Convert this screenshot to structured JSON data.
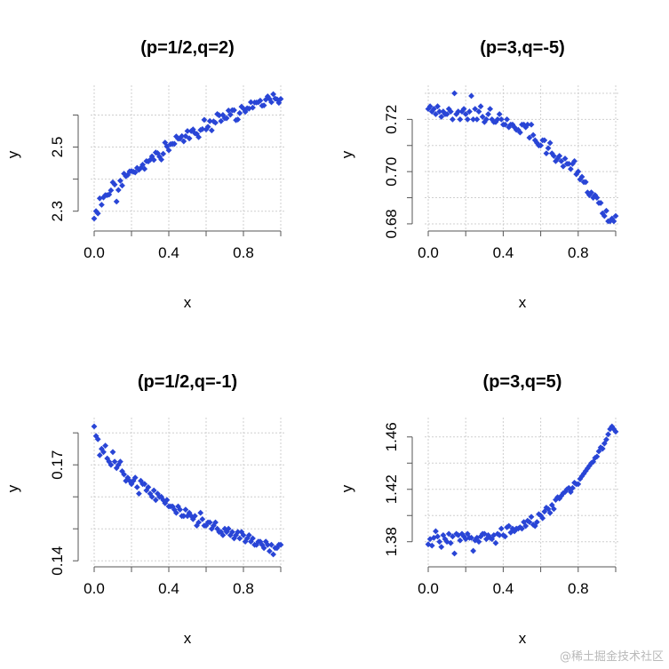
{
  "watermark": "@稀土掘金技术社区",
  "style": {
    "point_color": "#2945d6",
    "grid_color": "#cfcfcf",
    "axis_color": "#555555"
  },
  "chart_data": [
    {
      "type": "scatter",
      "title": "(p=1/2,q=2)",
      "xlabel": "x",
      "ylabel": "y",
      "xlim": [
        0,
        1
      ],
      "ylim": [
        2.26,
        2.68
      ],
      "grid": true,
      "xticks": [
        0.0,
        0.4,
        0.8
      ],
      "xtick_labels": [
        "0.0",
        "0.4",
        "0.8"
      ],
      "yticks": [
        2.3,
        2.5
      ],
      "ytick_labels": [
        "2.3",
        "2.5"
      ],
      "minor_yticks": [
        2.4,
        2.6
      ],
      "grid_y": [
        2.3,
        2.4,
        2.5,
        2.6
      ],
      "x": [
        0.0,
        0.01,
        0.02,
        0.03,
        0.04,
        0.05,
        0.06,
        0.07,
        0.08,
        0.09,
        0.1,
        0.11,
        0.12,
        0.13,
        0.14,
        0.15,
        0.16,
        0.17,
        0.18,
        0.19,
        0.2,
        0.21,
        0.22,
        0.23,
        0.24,
        0.25,
        0.26,
        0.27,
        0.28,
        0.29,
        0.3,
        0.31,
        0.32,
        0.33,
        0.34,
        0.35,
        0.36,
        0.37,
        0.38,
        0.39,
        0.4,
        0.41,
        0.42,
        0.43,
        0.44,
        0.45,
        0.46,
        0.47,
        0.48,
        0.49,
        0.5,
        0.51,
        0.52,
        0.53,
        0.54,
        0.55,
        0.56,
        0.57,
        0.58,
        0.59,
        0.6,
        0.61,
        0.62,
        0.63,
        0.64,
        0.65,
        0.66,
        0.67,
        0.68,
        0.69,
        0.7,
        0.71,
        0.72,
        0.73,
        0.74,
        0.75,
        0.76,
        0.77,
        0.78,
        0.79,
        0.8,
        0.81,
        0.82,
        0.83,
        0.84,
        0.85,
        0.86,
        0.87,
        0.88,
        0.89,
        0.9,
        0.91,
        0.92,
        0.93,
        0.94,
        0.95,
        0.96,
        0.97,
        0.98,
        0.99,
        1.0
      ],
      "y": [
        2.277,
        2.3,
        2.293,
        2.34,
        2.32,
        2.343,
        2.35,
        2.35,
        2.352,
        2.365,
        2.39,
        2.383,
        2.33,
        2.366,
        2.395,
        2.38,
        2.417,
        2.409,
        2.413,
        2.424,
        2.425,
        2.423,
        2.421,
        2.435,
        2.429,
        2.435,
        2.445,
        2.432,
        2.456,
        2.455,
        2.46,
        2.471,
        2.46,
        2.483,
        2.481,
        2.47,
        2.461,
        2.479,
        2.514,
        2.502,
        2.49,
        2.509,
        2.51,
        2.51,
        2.533,
        2.526,
        2.526,
        2.534,
        2.518,
        2.534,
        2.55,
        2.527,
        2.55,
        2.555,
        2.543,
        2.541,
        2.531,
        2.553,
        2.556,
        2.585,
        2.555,
        2.563,
        2.581,
        2.552,
        2.58,
        2.576,
        2.603,
        2.599,
        2.581,
        2.6,
        2.59,
        2.59,
        2.614,
        2.601,
        2.615,
        2.615,
        2.584,
        2.586,
        2.606,
        2.626,
        2.62,
        2.61,
        2.621,
        2.62,
        2.64,
        2.623,
        2.639,
        2.639,
        2.64,
        2.645,
        2.629,
        2.63,
        2.648,
        2.658,
        2.65,
        2.64,
        2.665,
        2.651,
        2.649,
        2.638,
        2.65
      ]
    },
    {
      "type": "scatter",
      "title": "(p=3,q=-5)",
      "xlabel": "x",
      "ylabel": "y",
      "xlim": [
        0,
        1
      ],
      "ylim": [
        0.677,
        0.7325
      ],
      "grid": true,
      "xticks": [
        0.0,
        0.4,
        0.8
      ],
      "xtick_labels": [
        "0.0",
        "0.4",
        "0.8"
      ],
      "yticks": [
        0.68,
        0.7,
        0.72
      ],
      "ytick_labels": [
        "0.68",
        "0.70",
        "0.72"
      ],
      "minor_yticks": [
        0.69,
        0.71
      ],
      "grid_y": [
        0.68,
        0.69,
        0.7,
        0.71,
        0.72,
        0.73
      ],
      "x": [
        0.0,
        0.01,
        0.02,
        0.03,
        0.04,
        0.05,
        0.06,
        0.07,
        0.08,
        0.09,
        0.1,
        0.11,
        0.12,
        0.13,
        0.14,
        0.15,
        0.16,
        0.17,
        0.18,
        0.19,
        0.2,
        0.21,
        0.22,
        0.23,
        0.24,
        0.25,
        0.26,
        0.27,
        0.28,
        0.29,
        0.3,
        0.31,
        0.32,
        0.33,
        0.34,
        0.35,
        0.36,
        0.37,
        0.38,
        0.39,
        0.4,
        0.41,
        0.42,
        0.43,
        0.44,
        0.45,
        0.46,
        0.47,
        0.48,
        0.49,
        0.5,
        0.51,
        0.52,
        0.53,
        0.54,
        0.55,
        0.56,
        0.57,
        0.58,
        0.59,
        0.6,
        0.61,
        0.62,
        0.63,
        0.64,
        0.65,
        0.66,
        0.67,
        0.68,
        0.69,
        0.7,
        0.71,
        0.72,
        0.73,
        0.74,
        0.75,
        0.76,
        0.77,
        0.78,
        0.79,
        0.8,
        0.81,
        0.82,
        0.83,
        0.84,
        0.85,
        0.86,
        0.87,
        0.88,
        0.89,
        0.9,
        0.91,
        0.92,
        0.93,
        0.94,
        0.95,
        0.96,
        0.97,
        0.98,
        0.99,
        1.0
      ],
      "y": [
        0.724,
        0.725,
        0.723,
        0.724,
        0.722,
        0.725,
        0.723,
        0.721,
        0.723,
        0.722,
        0.722,
        0.724,
        0.723,
        0.72,
        0.73,
        0.722,
        0.723,
        0.72,
        0.723,
        0.724,
        0.722,
        0.72,
        0.723,
        0.729,
        0.72,
        0.724,
        0.72,
        0.723,
        0.725,
        0.721,
        0.719,
        0.72,
        0.722,
        0.724,
        0.72,
        0.719,
        0.719,
        0.72,
        0.722,
        0.72,
        0.718,
        0.718,
        0.72,
        0.717,
        0.718,
        0.718,
        0.717,
        0.716,
        0.716,
        0.715,
        0.718,
        0.718,
        0.717,
        0.718,
        0.713,
        0.718,
        0.714,
        0.712,
        0.711,
        0.71,
        0.71,
        0.712,
        0.712,
        0.707,
        0.709,
        0.711,
        0.707,
        0.706,
        0.704,
        0.705,
        0.706,
        0.704,
        0.702,
        0.705,
        0.703,
        0.703,
        0.701,
        0.703,
        0.704,
        0.699,
        0.7,
        0.697,
        0.698,
        0.696,
        0.696,
        0.692,
        0.691,
        0.692,
        0.69,
        0.691,
        0.69,
        0.688,
        0.688,
        0.684,
        0.683,
        0.685,
        0.681,
        0.681,
        0.682,
        0.681,
        0.683
      ]
    },
    {
      "type": "scatter",
      "title": "(p=1/2,q=-1)",
      "xlabel": "x",
      "ylabel": "y",
      "xlim": [
        0,
        1
      ],
      "ylim": [
        0.1375,
        0.1835
      ],
      "grid": true,
      "xticks": [
        0.0,
        0.4,
        0.8
      ],
      "xtick_labels": [
        "0.0",
        "0.4",
        "0.8"
      ],
      "yticks": [
        0.14,
        0.17
      ],
      "ytick_labels": [
        "0.14",
        "0.17"
      ],
      "minor_yticks": [
        0.15,
        0.16,
        0.18
      ],
      "grid_y": [
        0.14,
        0.15,
        0.16,
        0.17,
        0.18
      ],
      "x": [
        0.0,
        0.01,
        0.02,
        0.03,
        0.04,
        0.05,
        0.06,
        0.07,
        0.08,
        0.09,
        0.1,
        0.11,
        0.12,
        0.13,
        0.14,
        0.15,
        0.16,
        0.17,
        0.18,
        0.19,
        0.2,
        0.21,
        0.22,
        0.23,
        0.24,
        0.25,
        0.26,
        0.27,
        0.28,
        0.29,
        0.3,
        0.31,
        0.32,
        0.33,
        0.34,
        0.35,
        0.36,
        0.37,
        0.38,
        0.39,
        0.4,
        0.41,
        0.42,
        0.43,
        0.44,
        0.45,
        0.46,
        0.47,
        0.48,
        0.49,
        0.5,
        0.51,
        0.52,
        0.53,
        0.54,
        0.55,
        0.56,
        0.57,
        0.58,
        0.59,
        0.6,
        0.61,
        0.62,
        0.63,
        0.64,
        0.65,
        0.66,
        0.67,
        0.68,
        0.69,
        0.7,
        0.71,
        0.72,
        0.73,
        0.74,
        0.75,
        0.76,
        0.77,
        0.78,
        0.79,
        0.8,
        0.81,
        0.82,
        0.83,
        0.84,
        0.85,
        0.86,
        0.87,
        0.88,
        0.89,
        0.9,
        0.91,
        0.92,
        0.93,
        0.94,
        0.95,
        0.96,
        0.97,
        0.98,
        0.99,
        1.0
      ],
      "y": [
        0.182,
        0.179,
        0.178,
        0.173,
        0.175,
        0.174,
        0.176,
        0.172,
        0.171,
        0.17,
        0.174,
        0.171,
        0.169,
        0.17,
        0.171,
        0.168,
        0.167,
        0.165,
        0.166,
        0.165,
        0.164,
        0.165,
        0.166,
        0.163,
        0.161,
        0.165,
        0.164,
        0.164,
        0.162,
        0.163,
        0.161,
        0.16,
        0.162,
        0.159,
        0.161,
        0.16,
        0.16,
        0.159,
        0.158,
        0.159,
        0.157,
        0.157,
        0.157,
        0.156,
        0.155,
        0.157,
        0.156,
        0.154,
        0.154,
        0.156,
        0.154,
        0.155,
        0.154,
        0.153,
        0.154,
        0.151,
        0.152,
        0.155,
        0.153,
        0.151,
        0.151,
        0.152,
        0.152,
        0.15,
        0.151,
        0.152,
        0.15,
        0.149,
        0.149,
        0.148,
        0.15,
        0.149,
        0.15,
        0.148,
        0.149,
        0.147,
        0.148,
        0.149,
        0.147,
        0.149,
        0.148,
        0.146,
        0.147,
        0.148,
        0.146,
        0.147,
        0.145,
        0.145,
        0.146,
        0.146,
        0.145,
        0.144,
        0.146,
        0.145,
        0.143,
        0.145,
        0.142,
        0.144,
        0.144,
        0.145,
        0.145
      ]
    },
    {
      "type": "scatter",
      "title": "(p=3,q=5)",
      "xlabel": "x",
      "ylabel": "y",
      "xlim": [
        0,
        1
      ],
      "ylim": [
        1.366,
        1.471
      ],
      "grid": true,
      "xticks": [
        0.0,
        0.4,
        0.8
      ],
      "xtick_labels": [
        "0.0",
        "0.4",
        "0.8"
      ],
      "yticks": [
        1.38,
        1.42,
        1.46
      ],
      "ytick_labels": [
        "1.38",
        "1.42",
        "1.46"
      ],
      "minor_yticks": [
        1.4,
        1.44
      ],
      "grid_y": [
        1.38,
        1.4,
        1.42,
        1.44,
        1.46
      ],
      "x": [
        0.0,
        0.01,
        0.02,
        0.03,
        0.04,
        0.05,
        0.06,
        0.07,
        0.08,
        0.09,
        0.1,
        0.11,
        0.12,
        0.13,
        0.14,
        0.15,
        0.16,
        0.17,
        0.18,
        0.19,
        0.2,
        0.21,
        0.22,
        0.23,
        0.24,
        0.25,
        0.26,
        0.27,
        0.28,
        0.29,
        0.3,
        0.31,
        0.32,
        0.33,
        0.34,
        0.35,
        0.36,
        0.37,
        0.38,
        0.39,
        0.4,
        0.41,
        0.42,
        0.43,
        0.44,
        0.45,
        0.46,
        0.47,
        0.48,
        0.49,
        0.5,
        0.51,
        0.52,
        0.53,
        0.54,
        0.55,
        0.56,
        0.57,
        0.58,
        0.59,
        0.6,
        0.61,
        0.62,
        0.63,
        0.64,
        0.65,
        0.66,
        0.67,
        0.68,
        0.69,
        0.7,
        0.71,
        0.72,
        0.73,
        0.74,
        0.75,
        0.76,
        0.77,
        0.78,
        0.79,
        0.8,
        0.81,
        0.82,
        0.83,
        0.84,
        0.85,
        0.86,
        0.87,
        0.88,
        0.89,
        0.9,
        0.91,
        0.92,
        0.93,
        0.94,
        0.95,
        0.96,
        0.97,
        0.98,
        0.99,
        1.0
      ],
      "y": [
        1.378,
        1.382,
        1.377,
        1.383,
        1.388,
        1.384,
        1.38,
        1.376,
        1.385,
        1.382,
        1.38,
        1.386,
        1.379,
        1.384,
        1.371,
        1.386,
        1.385,
        1.381,
        1.386,
        1.384,
        1.382,
        1.386,
        1.383,
        1.383,
        1.373,
        1.381,
        1.383,
        1.38,
        1.384,
        1.386,
        1.386,
        1.382,
        1.385,
        1.383,
        1.382,
        1.385,
        1.379,
        1.386,
        1.385,
        1.39,
        1.385,
        1.384,
        1.391,
        1.392,
        1.387,
        1.39,
        1.388,
        1.39,
        1.39,
        1.391,
        1.39,
        1.395,
        1.392,
        1.396,
        1.395,
        1.399,
        1.393,
        1.392,
        1.395,
        1.401,
        1.4,
        1.398,
        1.403,
        1.406,
        1.405,
        1.402,
        1.408,
        1.405,
        1.412,
        1.414,
        1.413,
        1.415,
        1.417,
        1.418,
        1.42,
        1.421,
        1.418,
        1.421,
        1.425,
        1.424,
        1.424,
        1.428,
        1.43,
        1.432,
        1.434,
        1.436,
        1.438,
        1.44,
        1.441,
        1.444,
        1.445,
        1.449,
        1.452,
        1.451,
        1.455,
        1.458,
        1.462,
        1.466,
        1.468,
        1.466,
        1.464
      ]
    }
  ]
}
